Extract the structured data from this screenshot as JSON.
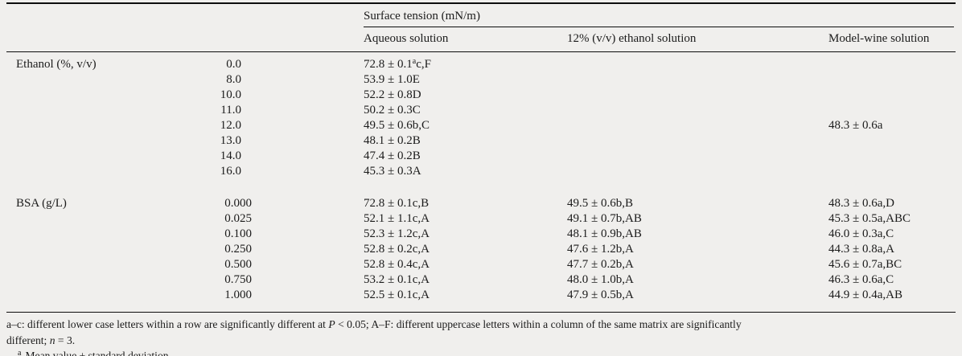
{
  "table": {
    "spanner": "Surface tension (mN/m)",
    "columns": [
      "Aqueous solution",
      "12% (v/v) ethanol solution",
      "Model-wine solution"
    ],
    "sections": [
      {
        "label": "Ethanol (%, v/v)",
        "rows": [
          {
            "dose": "0.0",
            "values": [
              "72.8 ± 0.1^a^c,F",
              "",
              ""
            ]
          },
          {
            "dose": "8.0",
            "values": [
              "53.9 ± 1.0E",
              "",
              ""
            ]
          },
          {
            "dose": "10.0",
            "values": [
              "52.2 ± 0.8D",
              "",
              ""
            ]
          },
          {
            "dose": "11.0",
            "values": [
              "50.2 ± 0.3C",
              "",
              ""
            ]
          },
          {
            "dose": "12.0",
            "values": [
              "49.5 ± 0.6b,C",
              "",
              "48.3 ± 0.6a"
            ]
          },
          {
            "dose": "13.0",
            "values": [
              "48.1 ± 0.2B",
              "",
              ""
            ]
          },
          {
            "dose": "14.0",
            "values": [
              "47.4 ± 0.2B",
              "",
              ""
            ]
          },
          {
            "dose": "16.0",
            "values": [
              "45.3 ± 0.3A",
              "",
              ""
            ]
          }
        ]
      },
      {
        "label": "BSA (g/L)",
        "rows": [
          {
            "dose": "0.000",
            "values": [
              "72.8 ± 0.1c,B",
              "49.5 ± 0.6b,B",
              "48.3 ± 0.6a,D"
            ]
          },
          {
            "dose": "0.025",
            "values": [
              "52.1 ± 1.1c,A",
              "49.1 ± 0.7b,AB",
              "45.3 ± 0.5a,ABC"
            ]
          },
          {
            "dose": "0.100",
            "values": [
              "52.3 ± 1.2c,A",
              "48.1 ± 0.9b,AB",
              "46.0 ± 0.3a,C"
            ]
          },
          {
            "dose": "0.250",
            "values": [
              "52.8 ± 0.2c,A",
              "47.6 ± 1.2b,A",
              "44.3 ± 0.8a,A"
            ]
          },
          {
            "dose": "0.500",
            "values": [
              "52.8 ± 0.4c,A",
              "47.7 ± 0.2b,A",
              "45.6 ± 0.7a,BC"
            ]
          },
          {
            "dose": "0.750",
            "values": [
              "53.2 ± 0.1c,A",
              "48.0 ± 1.0b,A",
              "46.3 ± 0.6a,C"
            ]
          },
          {
            "dose": "1.000",
            "values": [
              "52.5 ± 0.1c,A",
              "47.9 ± 0.5b,A",
              "44.9 ± 0.4a,AB"
            ]
          }
        ]
      }
    ]
  },
  "footnotes": {
    "note_line1": "a–c: different lower case letters within a row are significantly different at ~P~ < 0.05; A–F: different uppercase letters within a column of the same matrix are significantly",
    "note_line2": "different; ~n~ = 3.",
    "note_sup": "^a^Mean value ± standard deviation."
  },
  "colors": {
    "background": "#f0efed",
    "text": "#1b1b1b",
    "rule": "#0d0d0d"
  }
}
